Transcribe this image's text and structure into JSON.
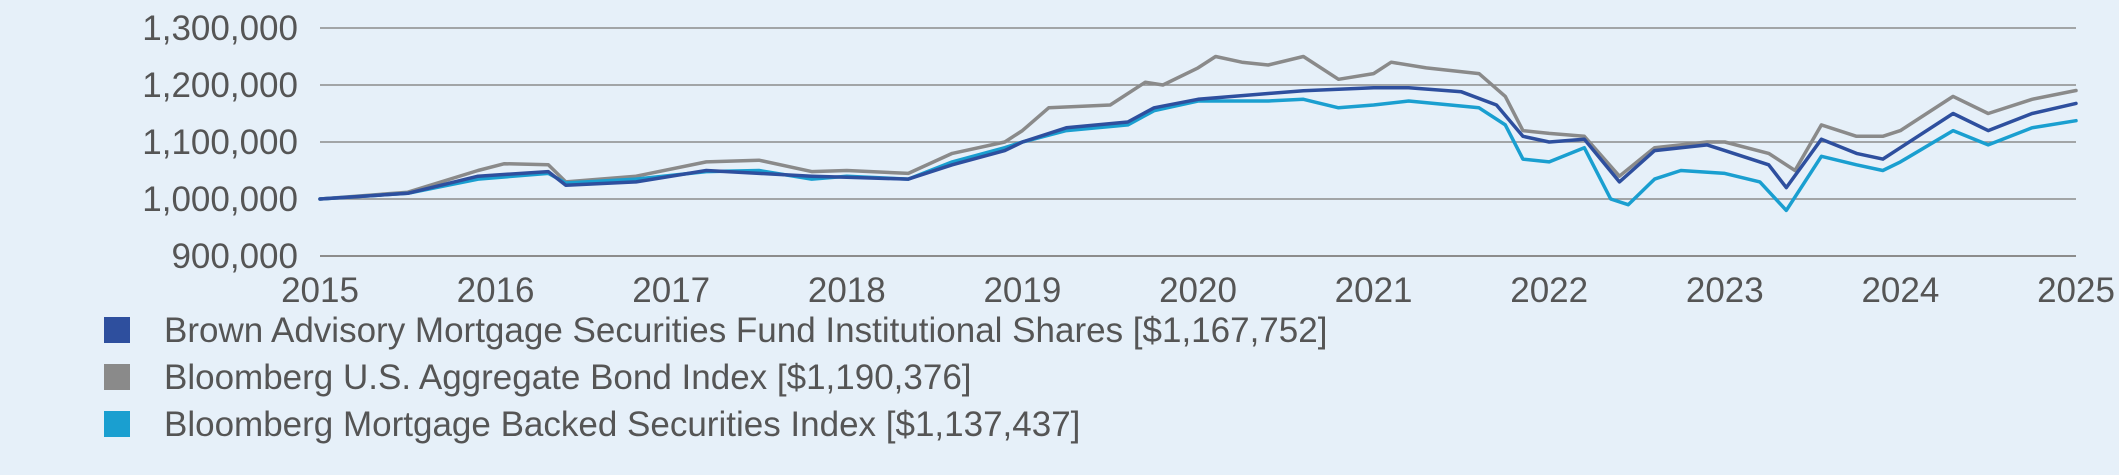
{
  "chart_data": {
    "type": "line",
    "title": "",
    "xlabel": "",
    "ylabel": "",
    "xlim": [
      2015,
      2025
    ],
    "ylim": [
      900000,
      1300000
    ],
    "grid": "horizontal",
    "legend_position": "bottom",
    "x_ticks": [
      2015,
      2016,
      2017,
      2018,
      2019,
      2020,
      2021,
      2022,
      2023,
      2024,
      2025
    ],
    "x_tick_labels": [
      "2015",
      "2016",
      "2017",
      "2018",
      "2019",
      "2020",
      "2021",
      "2022",
      "2023",
      "2024",
      "2025"
    ],
    "y_ticks": [
      900000,
      1000000,
      1100000,
      1200000,
      1300000
    ],
    "y_tick_labels": [
      "900,000",
      "1,000,000",
      "1,100,000",
      "1,200,000",
      "1,300,000"
    ],
    "series": [
      {
        "name": "Brown Advisory Mortgage Securities Fund Institutional Shares [$1,167,752]",
        "color": "#2e4f9e",
        "points": [
          [
            2015.0,
            1000000
          ],
          [
            2015.5,
            1010000
          ],
          [
            2015.9,
            1040000
          ],
          [
            2016.3,
            1048000
          ],
          [
            2016.4,
            1024000
          ],
          [
            2016.8,
            1030000
          ],
          [
            2017.2,
            1050000
          ],
          [
            2017.5,
            1045000
          ],
          [
            2017.8,
            1040000
          ],
          [
            2018.0,
            1038000
          ],
          [
            2018.35,
            1035000
          ],
          [
            2018.6,
            1060000
          ],
          [
            2018.9,
            1085000
          ],
          [
            2019.0,
            1100000
          ],
          [
            2019.25,
            1125000
          ],
          [
            2019.6,
            1135000
          ],
          [
            2019.75,
            1160000
          ],
          [
            2020.0,
            1175000
          ],
          [
            2020.4,
            1185000
          ],
          [
            2020.6,
            1190000
          ],
          [
            2021.0,
            1195000
          ],
          [
            2021.2,
            1195000
          ],
          [
            2021.5,
            1188000
          ],
          [
            2021.7,
            1165000
          ],
          [
            2021.85,
            1110000
          ],
          [
            2022.0,
            1100000
          ],
          [
            2022.2,
            1105000
          ],
          [
            2022.4,
            1030000
          ],
          [
            2022.6,
            1085000
          ],
          [
            2022.9,
            1095000
          ],
          [
            2023.0,
            1085000
          ],
          [
            2023.25,
            1060000
          ],
          [
            2023.35,
            1020000
          ],
          [
            2023.55,
            1105000
          ],
          [
            2023.75,
            1080000
          ],
          [
            2023.9,
            1070000
          ],
          [
            2024.0,
            1090000
          ],
          [
            2024.3,
            1150000
          ],
          [
            2024.5,
            1120000
          ],
          [
            2024.75,
            1150000
          ],
          [
            2025.0,
            1167752
          ]
        ]
      },
      {
        "name": "Bloomberg U.S. Aggregate Bond Index [$1,190,376]",
        "color": "#8a8a8a",
        "points": [
          [
            2015.0,
            1000000
          ],
          [
            2015.5,
            1012000
          ],
          [
            2015.9,
            1050000
          ],
          [
            2016.05,
            1062000
          ],
          [
            2016.3,
            1060000
          ],
          [
            2016.4,
            1030000
          ],
          [
            2016.8,
            1040000
          ],
          [
            2017.2,
            1065000
          ],
          [
            2017.5,
            1068000
          ],
          [
            2017.8,
            1048000
          ],
          [
            2018.0,
            1050000
          ],
          [
            2018.35,
            1045000
          ],
          [
            2018.6,
            1080000
          ],
          [
            2018.9,
            1100000
          ],
          [
            2019.0,
            1120000
          ],
          [
            2019.15,
            1160000
          ],
          [
            2019.5,
            1165000
          ],
          [
            2019.7,
            1205000
          ],
          [
            2019.8,
            1200000
          ],
          [
            2020.0,
            1230000
          ],
          [
            2020.1,
            1250000
          ],
          [
            2020.25,
            1240000
          ],
          [
            2020.4,
            1235000
          ],
          [
            2020.6,
            1250000
          ],
          [
            2020.8,
            1210000
          ],
          [
            2021.0,
            1220000
          ],
          [
            2021.1,
            1240000
          ],
          [
            2021.3,
            1230000
          ],
          [
            2021.6,
            1220000
          ],
          [
            2021.75,
            1180000
          ],
          [
            2021.85,
            1120000
          ],
          [
            2022.0,
            1115000
          ],
          [
            2022.2,
            1110000
          ],
          [
            2022.4,
            1040000
          ],
          [
            2022.6,
            1090000
          ],
          [
            2022.9,
            1100000
          ],
          [
            2023.0,
            1100000
          ],
          [
            2023.25,
            1080000
          ],
          [
            2023.4,
            1050000
          ],
          [
            2023.55,
            1130000
          ],
          [
            2023.75,
            1110000
          ],
          [
            2023.9,
            1110000
          ],
          [
            2024.0,
            1120000
          ],
          [
            2024.3,
            1180000
          ],
          [
            2024.5,
            1150000
          ],
          [
            2024.75,
            1175000
          ],
          [
            2025.0,
            1190376
          ]
        ]
      },
      {
        "name": "Bloomberg Mortgage Backed Securities Index [$1,137,437]",
        "color": "#1a9fd0",
        "points": [
          [
            2015.0,
            1000000
          ],
          [
            2015.5,
            1010000
          ],
          [
            2015.9,
            1035000
          ],
          [
            2016.3,
            1045000
          ],
          [
            2016.4,
            1028000
          ],
          [
            2016.8,
            1035000
          ],
          [
            2017.2,
            1048000
          ],
          [
            2017.5,
            1050000
          ],
          [
            2017.8,
            1035000
          ],
          [
            2018.0,
            1040000
          ],
          [
            2018.35,
            1035000
          ],
          [
            2018.6,
            1065000
          ],
          [
            2018.9,
            1090000
          ],
          [
            2019.0,
            1100000
          ],
          [
            2019.25,
            1120000
          ],
          [
            2019.6,
            1130000
          ],
          [
            2019.75,
            1155000
          ],
          [
            2020.0,
            1172000
          ],
          [
            2020.4,
            1172000
          ],
          [
            2020.6,
            1175000
          ],
          [
            2020.8,
            1160000
          ],
          [
            2021.0,
            1165000
          ],
          [
            2021.2,
            1172000
          ],
          [
            2021.6,
            1160000
          ],
          [
            2021.75,
            1130000
          ],
          [
            2021.85,
            1070000
          ],
          [
            2022.0,
            1065000
          ],
          [
            2022.2,
            1090000
          ],
          [
            2022.35,
            1000000
          ],
          [
            2022.45,
            990000
          ],
          [
            2022.6,
            1035000
          ],
          [
            2022.75,
            1050000
          ],
          [
            2023.0,
            1045000
          ],
          [
            2023.2,
            1030000
          ],
          [
            2023.35,
            980000
          ],
          [
            2023.55,
            1075000
          ],
          [
            2023.75,
            1060000
          ],
          [
            2023.9,
            1050000
          ],
          [
            2024.0,
            1065000
          ],
          [
            2024.3,
            1120000
          ],
          [
            2024.5,
            1095000
          ],
          [
            2024.75,
            1125000
          ],
          [
            2025.0,
            1137437
          ]
        ]
      }
    ]
  }
}
